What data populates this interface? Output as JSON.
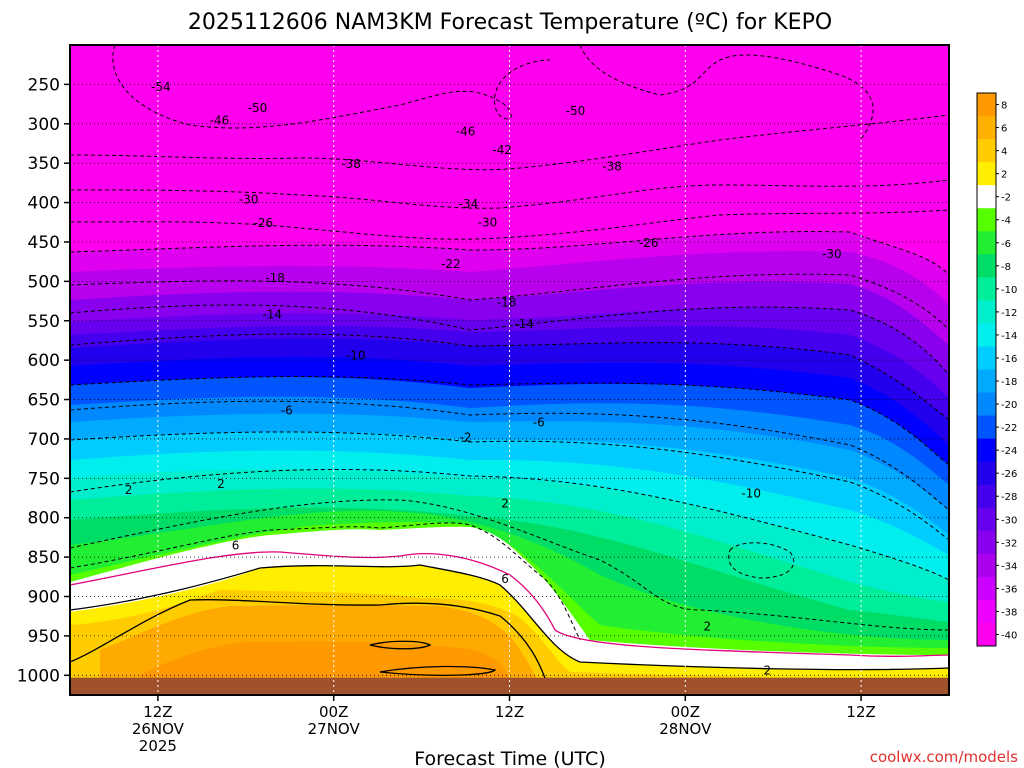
{
  "chart_data": {
    "type": "heatmap",
    "title": "2025112606 NAM3KM Forecast Temperature (ºC) for KEPO",
    "xlabel": "Forecast Time (UTC)",
    "ylabel": "",
    "y_ticks": [
      250,
      300,
      350,
      400,
      450,
      500,
      550,
      600,
      650,
      700,
      750,
      800,
      850,
      900,
      950,
      1000
    ],
    "x_ticks": [
      {
        "hour": 6,
        "line1": "12Z",
        "line2": "26NOV",
        "line3": "2025"
      },
      {
        "hour": 18,
        "line1": "00Z",
        "line2": "27NOV",
        "line3": ""
      },
      {
        "hour": 30,
        "line1": "12Z",
        "line2": "",
        "line3": ""
      },
      {
        "hour": 42,
        "line1": "00Z",
        "line2": "28NOV",
        "line3": ""
      },
      {
        "hour": 54,
        "line1": "12Z",
        "line2": "",
        "line3": ""
      }
    ],
    "x_range_hours": [
      0,
      60
    ],
    "y_range_hpa": [
      200,
      1025
    ],
    "surface_fill_from_hpa": 1003,
    "colorbar": {
      "labels": [
        "8",
        "6",
        "4",
        "2",
        "-2",
        "-4",
        "-6",
        "-8",
        "-10",
        "-12",
        "-14",
        "-16",
        "-18",
        "-20",
        "-22",
        "-24",
        "-26",
        "-28",
        "-30",
        "-32",
        "-34",
        "-36",
        "-38",
        "-40"
      ],
      "colors": [
        "#ff9900",
        "#ffb000",
        "#ffcc00",
        "#ffee00",
        "#ffffff",
        "#55ff00",
        "#22ee33",
        "#00dd66",
        "#00ee99",
        "#00eecc",
        "#00eeee",
        "#00ccff",
        "#00aaff",
        "#0088ff",
        "#0055ff",
        "#0000ff",
        "#2200ee",
        "#4400ee",
        "#6600ee",
        "#8800ee",
        "#aa00ee",
        "#cc00ff",
        "#ee00ff",
        "#ff00ee"
      ]
    },
    "contour_labels": [
      {
        "text": "-54",
        "hour": 6.2,
        "hpa": 253
      },
      {
        "text": "-50",
        "hour": 12.8,
        "hpa": 280
      },
      {
        "text": "-46",
        "hour": 10.2,
        "hpa": 296
      },
      {
        "text": "-50",
        "hour": 34.5,
        "hpa": 284
      },
      {
        "text": "-46",
        "hour": 27.0,
        "hpa": 310
      },
      {
        "text": "-42",
        "hour": 29.5,
        "hpa": 333
      },
      {
        "text": "-38",
        "hour": 19.2,
        "hpa": 351
      },
      {
        "text": "-38",
        "hour": 37.0,
        "hpa": 354
      },
      {
        "text": "-30",
        "hour": 12.2,
        "hpa": 396
      },
      {
        "text": "-34",
        "hour": 27.2,
        "hpa": 402
      },
      {
        "text": "-30",
        "hour": 28.5,
        "hpa": 425
      },
      {
        "text": "-26",
        "hour": 13.2,
        "hpa": 426
      },
      {
        "text": "-26",
        "hour": 39.5,
        "hpa": 451
      },
      {
        "text": "-30",
        "hour": 52.0,
        "hpa": 465
      },
      {
        "text": "-22",
        "hour": 26.0,
        "hpa": 478
      },
      {
        "text": "-18",
        "hour": 14.0,
        "hpa": 496
      },
      {
        "text": "-18",
        "hour": 29.8,
        "hpa": 527
      },
      {
        "text": "-14",
        "hour": 13.8,
        "hpa": 542
      },
      {
        "text": "-14",
        "hour": 31.0,
        "hpa": 554
      },
      {
        "text": "-10",
        "hour": 19.5,
        "hpa": 594
      },
      {
        "text": "-6",
        "hour": 14.8,
        "hpa": 664
      },
      {
        "text": "-6",
        "hour": 32.0,
        "hpa": 679
      },
      {
        "text": "-2",
        "hour": 27.0,
        "hpa": 698
      },
      {
        "text": "-10",
        "hour": 46.5,
        "hpa": 769
      },
      {
        "text": "2",
        "hour": 4.0,
        "hpa": 765
      },
      {
        "text": "2",
        "hour": 10.3,
        "hpa": 757
      },
      {
        "text": "2",
        "hour": 29.7,
        "hpa": 782
      },
      {
        "text": "6",
        "hour": 11.3,
        "hpa": 835
      },
      {
        "text": "6",
        "hour": 29.7,
        "hpa": 878
      },
      {
        "text": "2",
        "hour": 43.5,
        "hpa": 938
      },
      {
        "text": "2",
        "hour": 47.6,
        "hpa": 994
      }
    ]
  },
  "watermark": "coolwx.com/models"
}
